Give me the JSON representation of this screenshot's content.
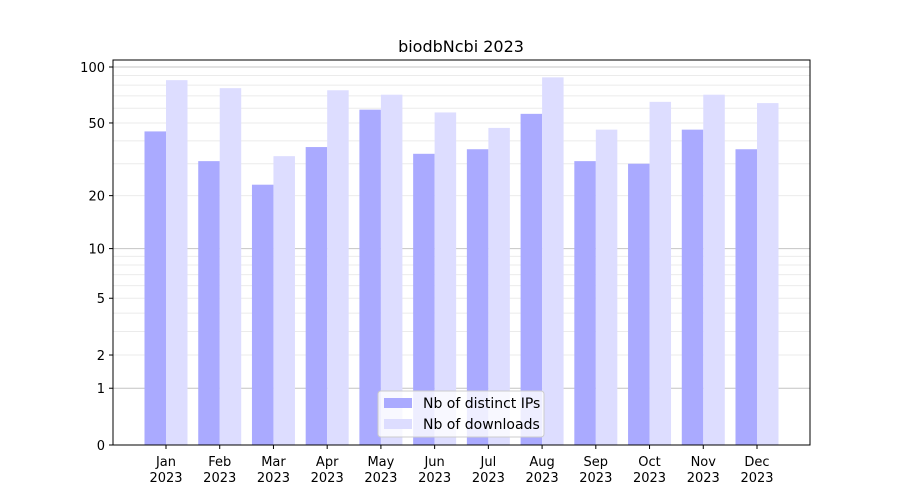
{
  "chart_data": {
    "type": "bar",
    "title": "biodbNcbi 2023",
    "xlabel": "",
    "ylabel": "",
    "yscale": "log(1+y)",
    "ylim": [
      0,
      109
    ],
    "yticks": [
      0,
      1,
      2,
      5,
      10,
      20,
      50,
      100
    ],
    "grid": true,
    "legend_position": "bottom-center",
    "categories": [
      "Jan\n2023",
      "Feb\n2023",
      "Mar\n2023",
      "Apr\n2023",
      "May\n2023",
      "Jun\n2023",
      "Jul\n2023",
      "Aug\n2023",
      "Sep\n2023",
      "Oct\n2023",
      "Nov\n2023",
      "Dec\n2023"
    ],
    "series": [
      {
        "name": "Nb of distinct IPs",
        "color": "#aaaaff",
        "values": [
          45,
          31,
          23,
          37,
          59,
          34,
          36,
          56,
          31,
          30,
          46,
          36
        ]
      },
      {
        "name": "Nb of downloads",
        "color": "#ddddff",
        "values": [
          85,
          77,
          33,
          75,
          71,
          57,
          47,
          88,
          46,
          65,
          71,
          64
        ]
      }
    ]
  }
}
